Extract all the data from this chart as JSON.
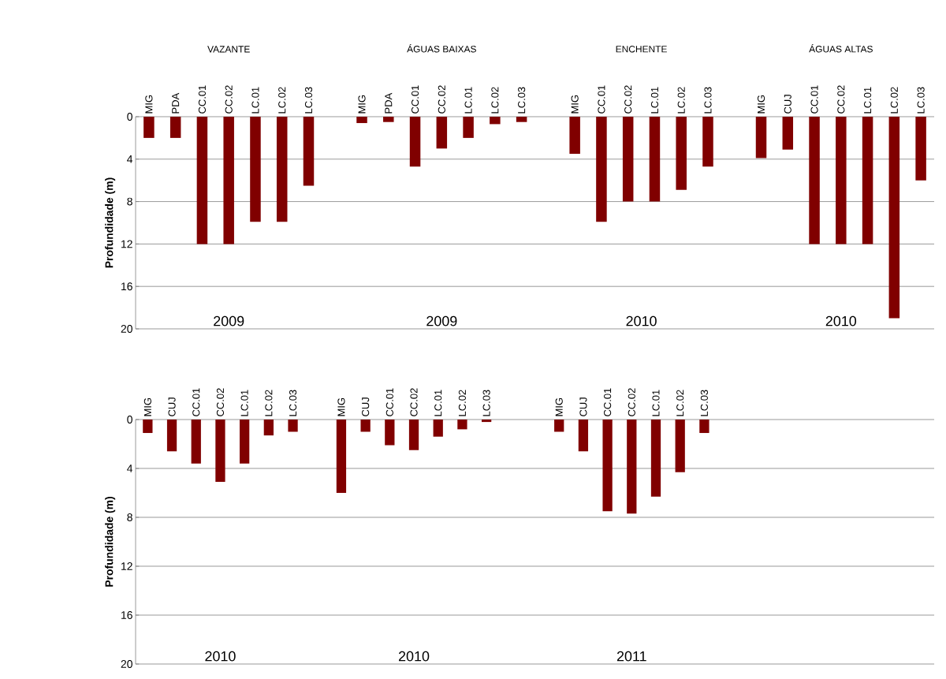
{
  "chart_data": [
    {
      "type": "bar",
      "ylabel": "Profundidade (m)",
      "color": "#800000",
      "ylim": [
        20,
        0
      ],
      "yticks": [
        0,
        4,
        8,
        12,
        16,
        20
      ],
      "grid": "y",
      "categories": [
        "MIG",
        "PDA",
        "CC.01",
        "CC.02",
        "LC.01",
        "LC.02",
        "LC.03",
        null,
        "MIG",
        "PDA",
        "CC.01",
        "CC.02",
        "LC.01",
        "LC.02",
        "LC.03",
        null,
        "MIG",
        "CC.01",
        "CC.02",
        "LC.01",
        "LC.02",
        "LC.03",
        null,
        "MIG",
        "CUJ",
        "CC.01",
        "CC.02",
        "LC.01",
        "LC.02",
        "LC.03"
      ],
      "values": [
        2.0,
        2.0,
        12,
        12,
        9.9,
        9.9,
        6.5,
        null,
        0.6,
        0.5,
        4.7,
        3.0,
        2.0,
        0.7,
        0.5,
        null,
        3.5,
        9.9,
        8.0,
        8.0,
        6.9,
        4.7,
        null,
        3.9,
        3.1,
        12,
        12,
        12,
        19.0,
        6.0
      ],
      "annotations": [
        "VAZANTE",
        "ÁGUAS BAIXAS",
        "ENCHENTE",
        "ÁGUAS ALTAS",
        "2009",
        "2009",
        "2010",
        "2010"
      ]
    },
    {
      "type": "bar",
      "ylabel": "Profundidade (m)",
      "color": "#800000",
      "ylim": [
        20,
        0
      ],
      "yticks": [
        0,
        4,
        8,
        12,
        16,
        20
      ],
      "grid": "y",
      "categories": [
        "MIG",
        "CUJ",
        "CC.01",
        "CC.02",
        "LC.01",
        "LC.02",
        "LC.03",
        null,
        "MIG",
        "CUJ",
        "CC.01",
        "CC.02",
        "LC.01",
        "LC.02",
        "LC.03",
        null,
        null,
        "MIG",
        "CUJ",
        "CC.01",
        "CC.02",
        "LC.01",
        "LC.02",
        "LC.03",
        null,
        null,
        null,
        null,
        null,
        null,
        null,
        null,
        null
      ],
      "values": [
        1.1,
        2.6,
        3.6,
        5.1,
        3.6,
        1.3,
        1.0,
        null,
        6.0,
        1.0,
        2.1,
        2.5,
        1.4,
        0.8,
        0.2,
        null,
        null,
        1.0,
        2.6,
        7.5,
        7.7,
        6.3,
        4.3,
        1.1,
        null,
        null,
        null,
        null,
        null,
        null,
        null,
        null,
        null
      ],
      "annotations": [
        "2010",
        "2010",
        "2011"
      ]
    }
  ]
}
